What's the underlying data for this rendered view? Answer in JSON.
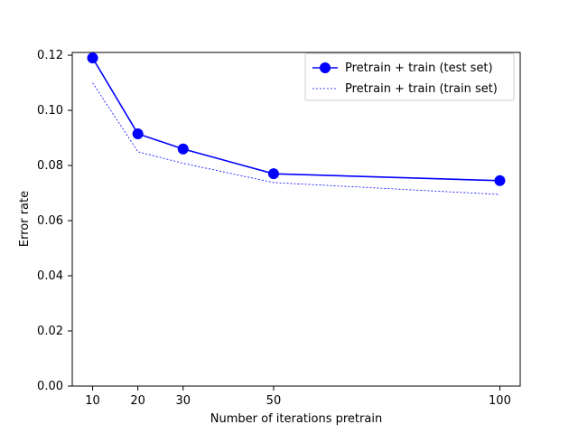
{
  "chart_data": {
    "type": "line",
    "title": "",
    "xlabel": "Number of iterations pretrain",
    "ylabel": "Error rate",
    "x": [
      10,
      20,
      30,
      50,
      100
    ],
    "xticks": [
      "10",
      "20",
      "30",
      "50",
      "100"
    ],
    "yticks": [
      "0.00",
      "0.02",
      "0.04",
      "0.06",
      "0.08",
      "0.10",
      "0.12"
    ],
    "xlim": [
      5.5,
      104.5
    ],
    "ylim": [
      0,
      0.121
    ],
    "grid": false,
    "legend_position": "top-right",
    "series": [
      {
        "name": "Pretrain + train (test set)",
        "values": [
          0.119,
          0.0915,
          0.086,
          0.077,
          0.0745
        ],
        "color": "#0000ff",
        "line_style": "solid",
        "marker": "circle"
      },
      {
        "name": "Pretrain + train (train set)",
        "values": [
          0.11,
          0.085,
          0.0808,
          0.0738,
          0.0695
        ],
        "color": "#0000ff",
        "line_style": "dashed",
        "marker": "none"
      }
    ]
  }
}
